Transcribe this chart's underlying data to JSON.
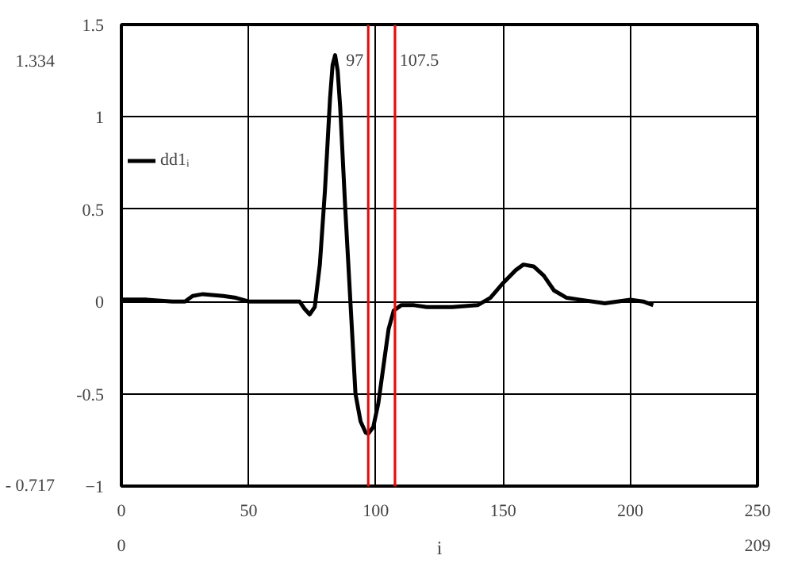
{
  "chart_data": {
    "type": "line",
    "xlabel": "i",
    "legend": "left",
    "x": [
      0,
      10,
      20,
      25,
      28,
      32,
      40,
      45,
      50,
      60,
      70,
      72,
      74,
      76,
      78,
      80,
      82,
      83,
      84,
      85,
      86,
      88,
      90,
      92,
      94,
      96,
      97,
      99,
      101,
      103,
      105,
      107,
      110,
      115,
      120,
      130,
      140,
      145,
      150,
      155,
      158,
      162,
      166,
      170,
      175,
      180,
      190,
      195,
      200,
      205,
      209
    ],
    "series": [
      {
        "name": "dd1ᵢ",
        "color": "#000000",
        "values": [
          0.01,
          0.01,
          0.0,
          0.0,
          0.03,
          0.04,
          0.03,
          0.02,
          0.0,
          0.0,
          0.0,
          -0.04,
          -0.07,
          -0.03,
          0.2,
          0.6,
          1.1,
          1.28,
          1.334,
          1.25,
          1.05,
          0.5,
          0.0,
          -0.5,
          -0.65,
          -0.71,
          -0.717,
          -0.68,
          -0.55,
          -0.35,
          -0.15,
          -0.05,
          -0.02,
          -0.02,
          -0.03,
          -0.03,
          -0.02,
          0.02,
          0.1,
          0.17,
          0.2,
          0.19,
          0.14,
          0.06,
          0.02,
          0.01,
          -0.01,
          0.0,
          0.01,
          0.0,
          -0.02
        ]
      }
    ],
    "xlim": [
      0,
      250
    ],
    "ylim": [
      -1,
      1.5
    ],
    "xticks": [
      0,
      50,
      100,
      150,
      200,
      250
    ],
    "yticks": [
      {
        "value": -1,
        "label": "−1"
      },
      -0.5,
      0,
      0.5,
      1,
      1.5
    ],
    "grid": true,
    "marker": "none",
    "line_style": "solid",
    "ref_lines": [
      {
        "axis": "x",
        "value": 97,
        "label": "97",
        "color": "#ff0000"
      },
      {
        "axis": "x",
        "value": 107.5,
        "label": "107.5",
        "color": "#ff0000"
      }
    ],
    "annotations": [
      "1.334",
      "- 0.717",
      "0",
      "209"
    ]
  }
}
